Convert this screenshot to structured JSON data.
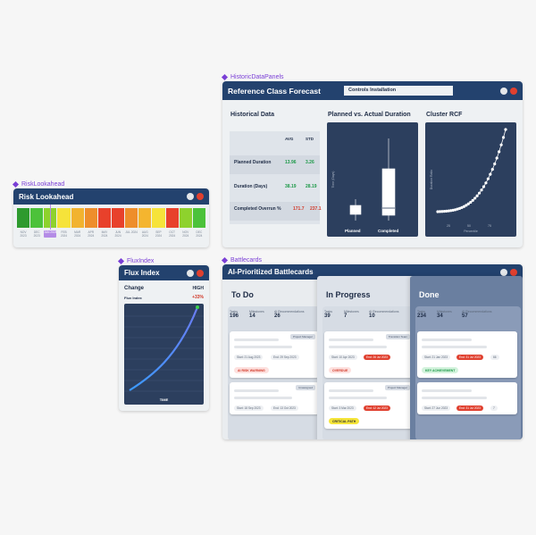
{
  "frames": {
    "risk": "RiskLookahead",
    "flux": "FluxIndex",
    "historic": "HistoricDataPanels",
    "battle": "Battlecards"
  },
  "risk": {
    "title": "Risk Lookahead",
    "months": [
      {
        "label": "NOV 2023",
        "color": "#2e9a2e"
      },
      {
        "label": "DEC 2023",
        "color": "#4cc23a"
      },
      {
        "label": "JAN 2024",
        "color": "#8ed22d"
      },
      {
        "label": "FEB 2024",
        "color": "#f6e33a"
      },
      {
        "label": "MAR 2024",
        "color": "#f2b32f"
      },
      {
        "label": "APR 2024",
        "color": "#ee8e2b"
      },
      {
        "label": "MAY 2024",
        "color": "#e8412b"
      },
      {
        "label": "JUN 2024",
        "color": "#e8412b"
      },
      {
        "label": "JUL 2024",
        "color": "#ee8e2b"
      },
      {
        "label": "AUG 2024",
        "color": "#f4b52f"
      },
      {
        "label": "SEP 2024",
        "color": "#f6e33a"
      },
      {
        "label": "OCT 2024",
        "color": "#e8412b"
      },
      {
        "label": "NOV 2024",
        "color": "#8ed22d"
      },
      {
        "label": "DEC 2024",
        "color": "#4cc23a"
      }
    ],
    "selected_index": 2
  },
  "flux": {
    "title": "Flux Index",
    "change_label": "Change",
    "level": "HIGH",
    "sub_label": "Flux Index",
    "change_value": "+33%",
    "x_axis": "TIME"
  },
  "historic": {
    "title": "Reference Class Forecast",
    "dropdown": "Controls Installation",
    "table_title": "Historical Data",
    "col_avg": "AVG",
    "col_std": "STD",
    "rows": [
      {
        "label": "Planned Duration",
        "avg": "13.96",
        "std": "3.26",
        "color": "#1f9a4a"
      },
      {
        "label": "Duration (Days)",
        "avg": "38.19",
        "std": "28.19",
        "color": "#1f9a4a"
      },
      {
        "label": "Completed Overrun %",
        "avg": "171.7",
        "std": "237.1",
        "color": "#d23a2a"
      }
    ],
    "box_title": "Planned vs. Actual Duration",
    "box_ylabel": "Time (Days)",
    "box_cats": [
      "Planned",
      "Completed"
    ],
    "cluster_title": "Cluster RCF",
    "cluster_ylabel": "Duration Ratio",
    "cluster_xlabel": "Percentile",
    "cluster_ticks": [
      "25",
      "50",
      "75"
    ]
  },
  "battle": {
    "title": "AI-Prioritized Battlecards",
    "stat_labels": [
      "Tasks",
      "Milestones",
      "AI Recommendations"
    ],
    "columns": [
      {
        "title": "To Do",
        "stats": [
          "196",
          "14",
          "26"
        ],
        "cards": [
          {
            "tag": "Project Manager",
            "start": "Start: 21 Aug 2023",
            "end": "End: 29 Sep 2023",
            "badge": "AI RISK WARNING",
            "badge_type": "risk"
          },
          {
            "tag": "Unassigned",
            "start": "Start: 18 Sep 2023",
            "end": "End: 13 Oct 2023",
            "badge": "",
            "badge_type": ""
          }
        ]
      },
      {
        "title": "In Progress",
        "stats": [
          "39",
          "7",
          "10"
        ],
        "cards": [
          {
            "tag": "Transition Team",
            "start": "Start: 10 Apr 2023",
            "end": "End: 26 Jul 2023",
            "badge": "OVERDUE",
            "badge_type": "risk"
          },
          {
            "tag": "Project Manager",
            "start": "Start: 3 Mar 2023",
            "end": "End: 12 Jul 2023",
            "badge": "CRITICAL PATH",
            "badge_type": "critical"
          }
        ]
      },
      {
        "title": "Done",
        "stats": [
          "234",
          "34",
          "57"
        ],
        "cards": [
          {
            "tag": "",
            "start": "Start: 21 Jan 2023",
            "end": "End: 31 Jul 2023",
            "extra": "66",
            "badge": "KEY ACHIEVEMENT",
            "badge_type": "good"
          },
          {
            "tag": "",
            "start": "Start: 27 Jun 2023",
            "end": "End: 31 Jul 2023",
            "extra": "7",
            "badge": "",
            "badge_type": ""
          }
        ]
      }
    ]
  },
  "colors": {
    "navy": "#23426e",
    "dark_chart": "#2c3f5e",
    "close": "#e0402f"
  }
}
